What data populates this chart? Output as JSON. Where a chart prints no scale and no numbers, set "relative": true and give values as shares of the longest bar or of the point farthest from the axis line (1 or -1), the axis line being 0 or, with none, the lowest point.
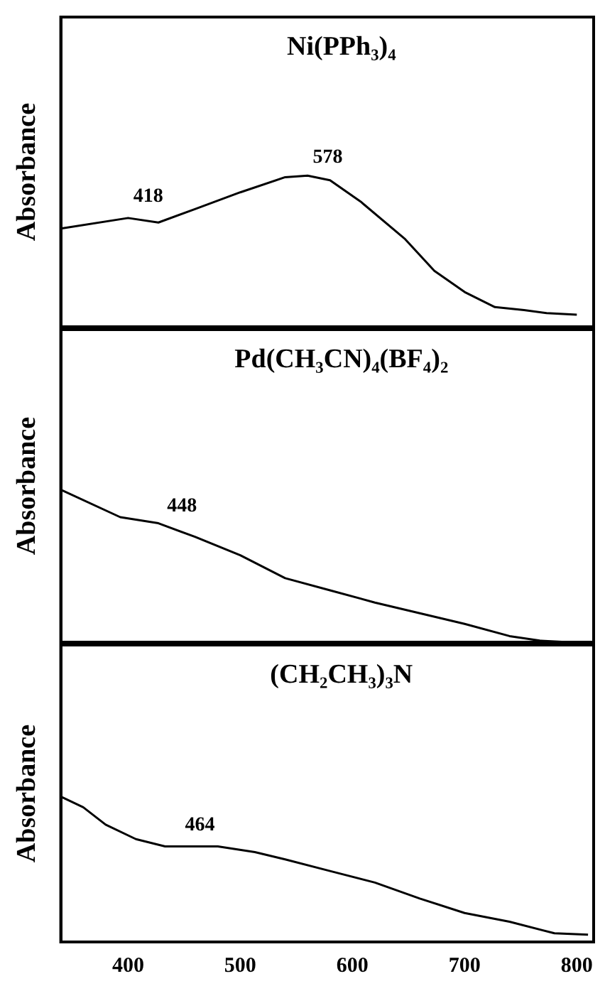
{
  "chart_data": [
    {
      "type": "line",
      "title": "Ni(PPh₃)₄",
      "ylabel": "Absorbance",
      "relative": true,
      "tick_labels": false,
      "xlim": [
        340,
        815
      ],
      "xticks": [
        400,
        500,
        600,
        700,
        800
      ],
      "x": [
        340,
        400,
        427,
        460,
        500,
        540,
        560,
        580,
        607,
        647,
        673,
        700,
        727,
        753,
        773,
        800
      ],
      "series": [
        {
          "color": "#000000",
          "values": [
            0.65,
            0.72,
            0.69,
            0.78,
            0.89,
            0.99,
            1.0,
            0.97,
            0.83,
            0.58,
            0.37,
            0.23,
            0.13,
            0.11,
            0.09,
            0.08
          ]
        }
      ],
      "annotations": [
        {
          "text": "418",
          "x": 418,
          "y": 0.72
        },
        {
          "text": "578",
          "x": 578,
          "y": 0.98
        }
      ]
    },
    {
      "type": "line",
      "title": "Pd(CH₃CN)₄(BF₄)₂",
      "ylabel": "Absorbance",
      "relative": true,
      "tick_labels": false,
      "xlim": [
        340,
        815
      ],
      "xticks": [
        400,
        500,
        600,
        700,
        800
      ],
      "x": [
        340,
        393,
        427,
        460,
        500,
        540,
        580,
        620,
        660,
        700,
        740,
        767,
        793
      ],
      "series": [
        {
          "color": "#000000",
          "values": [
            1.0,
            0.82,
            0.78,
            0.69,
            0.57,
            0.42,
            0.34,
            0.26,
            0.19,
            0.12,
            0.04,
            0.01,
            0.0
          ]
        }
      ],
      "annotations": [
        {
          "text": "448",
          "x": 448,
          "y": 0.75
        }
      ]
    },
    {
      "type": "line",
      "title": "(CH₂CH₃)₃N",
      "ylabel": "Absorbance",
      "relative": true,
      "tick_labels": "x",
      "xlim": [
        340,
        815
      ],
      "xticks": [
        400,
        500,
        600,
        700,
        800
      ],
      "x": [
        341,
        360,
        380,
        407,
        433,
        480,
        513,
        540,
        580,
        620,
        660,
        700,
        740,
        780,
        810
      ],
      "series": [
        {
          "color": "#000000",
          "values": [
            1.0,
            0.93,
            0.81,
            0.71,
            0.66,
            0.66,
            0.62,
            0.57,
            0.49,
            0.41,
            0.3,
            0.2,
            0.14,
            0.06,
            0.05
          ]
        }
      ],
      "annotations": [
        {
          "text": "464",
          "x": 464,
          "y": 0.66
        }
      ]
    }
  ]
}
